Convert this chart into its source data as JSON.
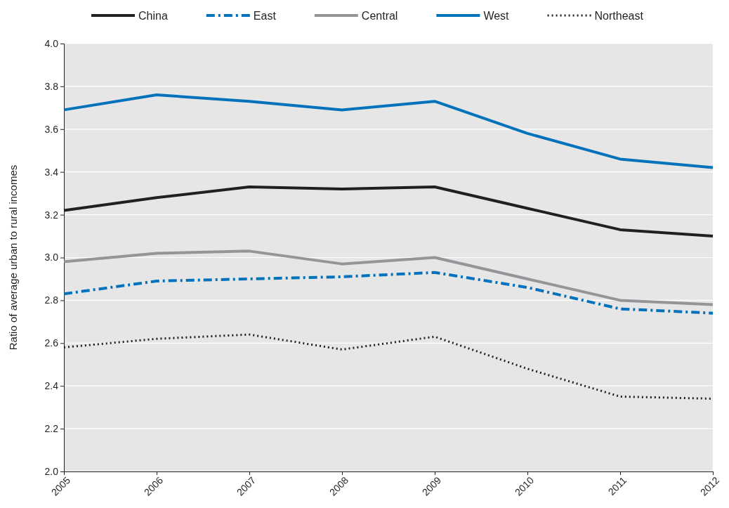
{
  "chart_data": {
    "type": "line",
    "ylabel": "Ratio of average urban to rural incomes",
    "x": [
      2005,
      2006,
      2007,
      2008,
      2009,
      2010,
      2011,
      2012
    ],
    "xlim": [
      2005,
      2012
    ],
    "xticks": [
      2005,
      2006,
      2007,
      2008,
      2009,
      2010,
      2011,
      2012
    ],
    "ylim": [
      2.0,
      4.0
    ],
    "yticks": [
      {
        "value": 2.0,
        "label": "2.0"
      },
      {
        "value": 2.2,
        "label": "2.2"
      },
      {
        "value": 2.4,
        "label": "2.4"
      },
      {
        "value": 2.6,
        "label": "2.6"
      },
      {
        "value": 2.8,
        "label": "2.8"
      },
      {
        "value": 3.0,
        "label": "3.0"
      },
      {
        "value": 3.2,
        "label": "3.2"
      },
      {
        "value": 3.4,
        "label": "3.4"
      },
      {
        "value": 3.6,
        "label": "3.6"
      },
      {
        "value": 3.8,
        "label": "3.8"
      },
      {
        "value": 4.0,
        "label": "4.0"
      }
    ],
    "grid": "y",
    "legend": "top",
    "marker": "none",
    "series": [
      {
        "name": "China",
        "color": "#231f20",
        "line_style": "solid",
        "values": [
          3.22,
          3.28,
          3.33,
          3.32,
          3.33,
          3.23,
          3.13,
          3.1
        ]
      },
      {
        "name": "East",
        "color": "#0072bc",
        "line_style": "dashed",
        "values": [
          2.83,
          2.89,
          2.9,
          2.91,
          2.93,
          2.86,
          2.76,
          2.74
        ]
      },
      {
        "name": "Central",
        "color": "#939598",
        "line_style": "solid",
        "values": [
          2.98,
          3.02,
          3.03,
          2.97,
          3.0,
          2.9,
          2.8,
          2.78
        ]
      },
      {
        "name": "West",
        "color": "#0072bc",
        "line_style": "solid",
        "values": [
          3.69,
          3.76,
          3.73,
          3.69,
          3.73,
          3.58,
          3.46,
          3.42
        ]
      },
      {
        "name": "Northeast",
        "color": "#231f20",
        "line_style": "dotted",
        "values": [
          2.58,
          2.62,
          2.64,
          2.57,
          2.63,
          2.48,
          2.35,
          2.34
        ]
      }
    ]
  }
}
